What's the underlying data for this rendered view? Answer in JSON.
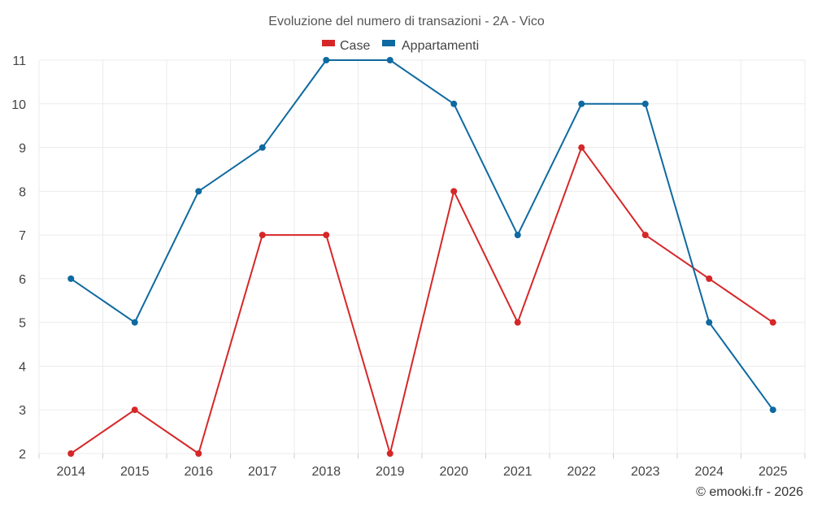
{
  "chart_data": {
    "type": "line",
    "title": "Evoluzione del numero di transazioni - 2A - Vico",
    "x": [
      "2014",
      "2015",
      "2016",
      "2017",
      "2018",
      "2019",
      "2020",
      "2021",
      "2022",
      "2023",
      "2024",
      "2025"
    ],
    "series": [
      {
        "name": "Case",
        "color": "#d62728",
        "values": [
          2,
          3,
          2,
          7,
          7,
          2,
          8,
          5,
          9,
          7,
          6,
          5
        ]
      },
      {
        "name": "Appartamenti",
        "color": "#0e6aa0",
        "values": [
          6,
          5,
          8,
          9,
          11,
          11,
          10,
          7,
          10,
          10,
          5,
          3
        ]
      }
    ],
    "ylim": [
      2,
      11
    ],
    "yticks": [
      "2",
      "3",
      "4",
      "5",
      "6",
      "7",
      "8",
      "9",
      "10",
      "11"
    ],
    "xlabel": "",
    "ylabel": "",
    "grid": true,
    "legend_position": "top-center"
  },
  "credit": "© emooki.fr - 2026"
}
